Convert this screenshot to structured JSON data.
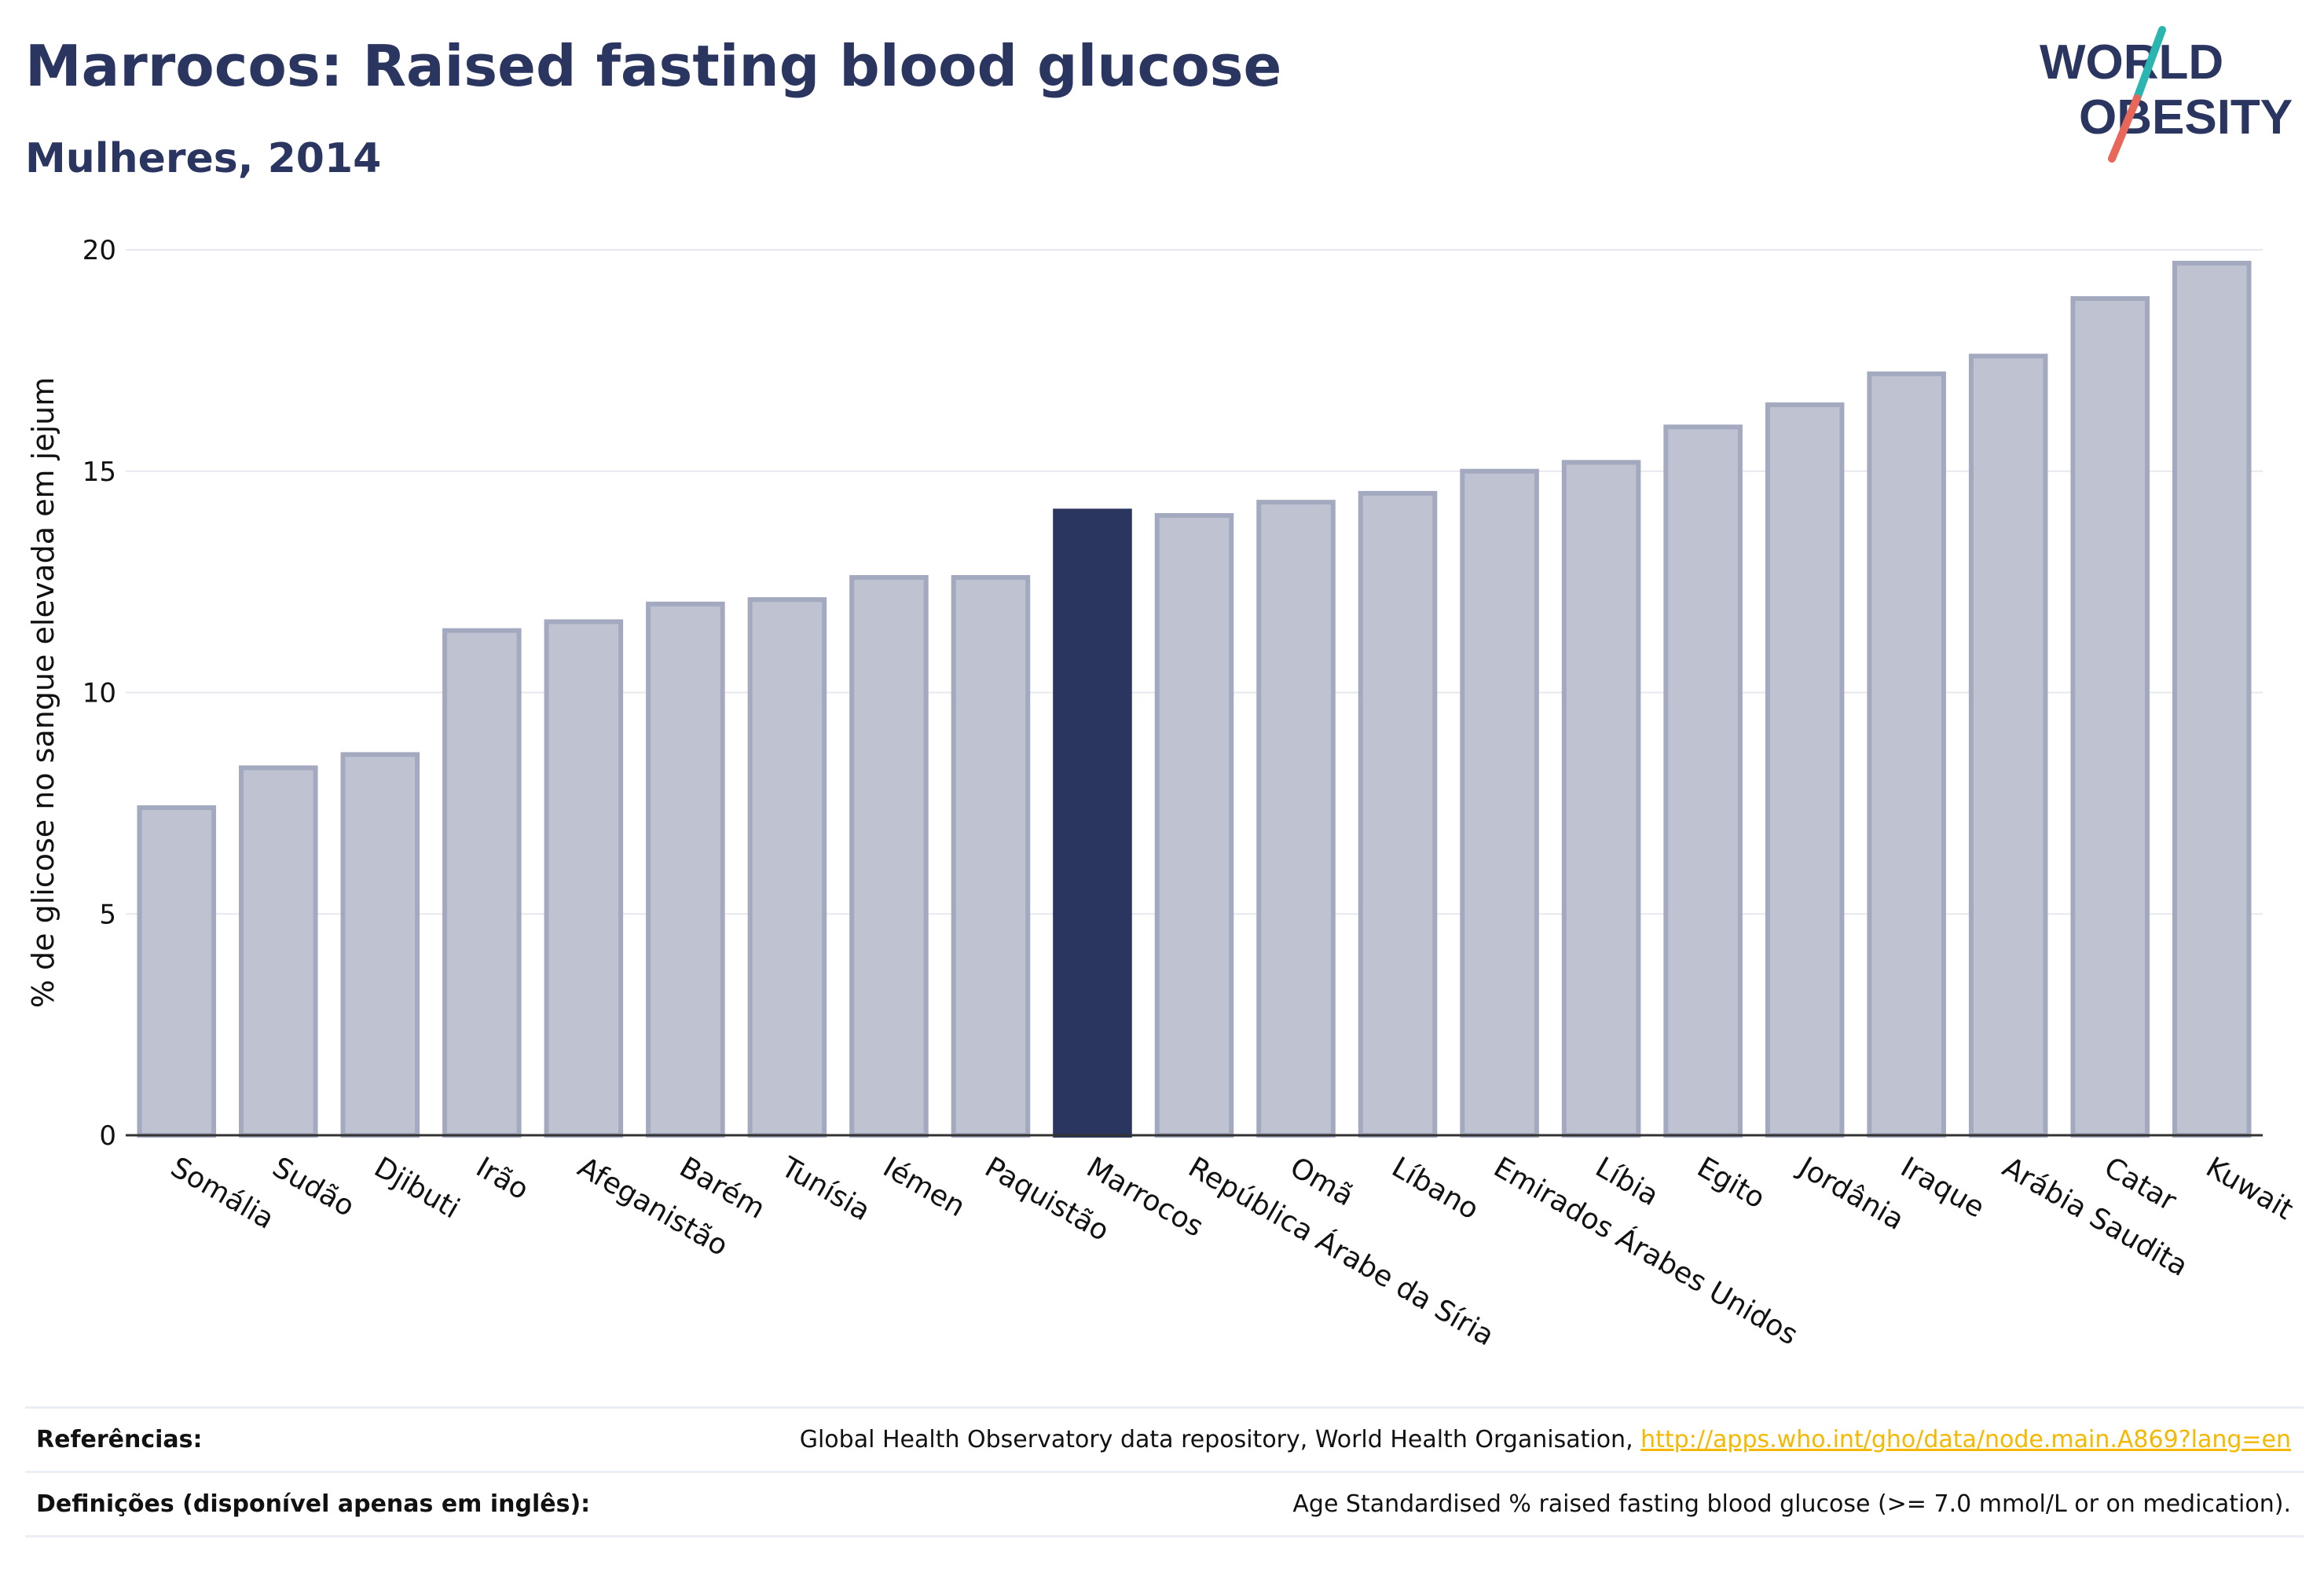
{
  "header": {
    "title": "Marrocos: Raised fasting blood glucose",
    "subtitle": "Mulheres, 2014"
  },
  "logo": {
    "line1": "WORLD",
    "line2": "OBESITY",
    "colors": {
      "text": "#2a3560",
      "slash_top": "#2bb5b0",
      "slash_bottom": "#e8675a"
    }
  },
  "chart_data": {
    "type": "bar",
    "title": "Marrocos: Raised fasting blood glucose",
    "subtitle": "Mulheres, 2014",
    "xlabel": "",
    "ylabel": "% de glicose no sangue elevada em jejum",
    "ylim": [
      0,
      20
    ],
    "yticks": [
      0,
      5,
      10,
      15,
      20
    ],
    "grid": true,
    "highlight": "Marrocos",
    "colors": {
      "bar": "#bfc3d1",
      "bar_edge": "#a3a9be",
      "highlight": "#2a3560",
      "grid": "#e6e8ee",
      "axis": "#333333"
    },
    "categories": [
      "Somália",
      "Sudão",
      "Djibuti",
      "Irão",
      "Afeganistão",
      "Barém",
      "Tunísia",
      "Iémen",
      "Paquistão",
      "Marrocos",
      "República Árabe da Síria",
      "Omã",
      "Líbano",
      "Emirados Árabes Unidos",
      "Líbia",
      "Egito",
      "Jordânia",
      "Iraque",
      "Arábia Saudita",
      "Catar",
      "Kuwait"
    ],
    "values": [
      7.4,
      8.3,
      8.6,
      11.4,
      11.6,
      12.0,
      12.1,
      12.6,
      12.6,
      14.1,
      14.0,
      14.3,
      14.5,
      15.0,
      15.2,
      16.0,
      16.5,
      17.2,
      17.6,
      18.9,
      19.7
    ]
  },
  "footer": {
    "references_label": "Referências:",
    "references_text": "Global Health Observatory data repository, World Health Organisation, ",
    "references_link": "http://apps.who.int/gho/data/node.main.A869?lang=en",
    "definitions_label": "Definições (disponível apenas em inglês):",
    "definitions_text": "Age Standardised % raised fasting blood glucose (>= 7.0 mmol/L or on medication)."
  }
}
